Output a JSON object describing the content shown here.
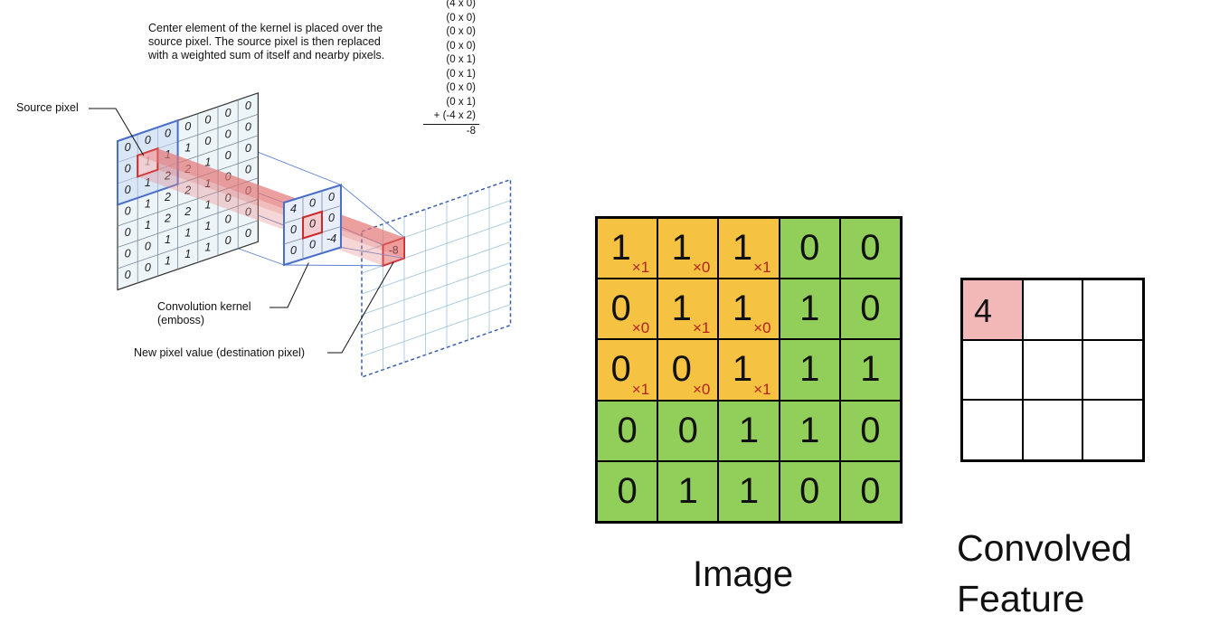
{
  "description": [
    "Center element of the kernel is placed over the",
    "source pixel. The source pixel is then replaced",
    "with a weighted sum of itself and nearby pixels."
  ],
  "calculation": [
    "(4 x 0)",
    "(0 x 0)",
    "(0 x 0)",
    "(0 x 0)",
    "(0 x 1)",
    "(0 x 1)",
    "(0 x 0)",
    "(0 x 1)",
    "+ (-4 x 2)",
    "-8"
  ],
  "labels": {
    "source_pixel": "Source pixel",
    "conv_kernel_1": "Convolution kernel",
    "conv_kernel_2": "(emboss)",
    "new_pixel": "New pixel value (destination pixel)"
  },
  "source_grid": [
    [
      "0",
      "0",
      "0",
      "0",
      "0",
      "0",
      "0"
    ],
    [
      "0",
      "1",
      "1",
      "1",
      "0",
      "0",
      "0"
    ],
    [
      "0",
      "1",
      "2",
      "2",
      "1",
      "0",
      "0"
    ],
    [
      "0",
      "1",
      "2",
      "2",
      "1",
      "0",
      "0"
    ],
    [
      "0",
      "1",
      "2",
      "2",
      "1",
      "0",
      "0"
    ],
    [
      "0",
      "0",
      "1",
      "1",
      "1",
      "0",
      "0"
    ],
    [
      "0",
      "0",
      "1",
      "1",
      "1",
      "0",
      "0"
    ]
  ],
  "kernel_grid": [
    [
      "4",
      "0",
      "0"
    ],
    [
      "0",
      "0",
      "0"
    ],
    [
      "0",
      "0",
      "-4"
    ]
  ],
  "destination_value": "-8",
  "image_grid": [
    [
      "1",
      "1",
      "1",
      "0",
      "0"
    ],
    [
      "0",
      "1",
      "1",
      "1",
      "0"
    ],
    [
      "0",
      "0",
      "1",
      "1",
      "1"
    ],
    [
      "0",
      "0",
      "1",
      "1",
      "0"
    ],
    [
      "0",
      "1",
      "1",
      "0",
      "0"
    ]
  ],
  "kernel_weights": [
    [
      "×1",
      "×0",
      "×1"
    ],
    [
      "×0",
      "×1",
      "×0"
    ],
    [
      "×1",
      "×0",
      "×1"
    ]
  ],
  "feature_grid": [
    [
      "4",
      "",
      ""
    ],
    [
      "",
      "",
      ""
    ],
    [
      "",
      "",
      ""
    ]
  ],
  "captions": {
    "image": "Image",
    "feature_1": "Convolved",
    "feature_2": "Feature"
  },
  "colors": {
    "window": "#f5c242",
    "image": "#92cf5a",
    "highlight": "#f2b8b8",
    "kernel_red": "#cc2a2a",
    "grid_blue": "#4a6fc9"
  }
}
